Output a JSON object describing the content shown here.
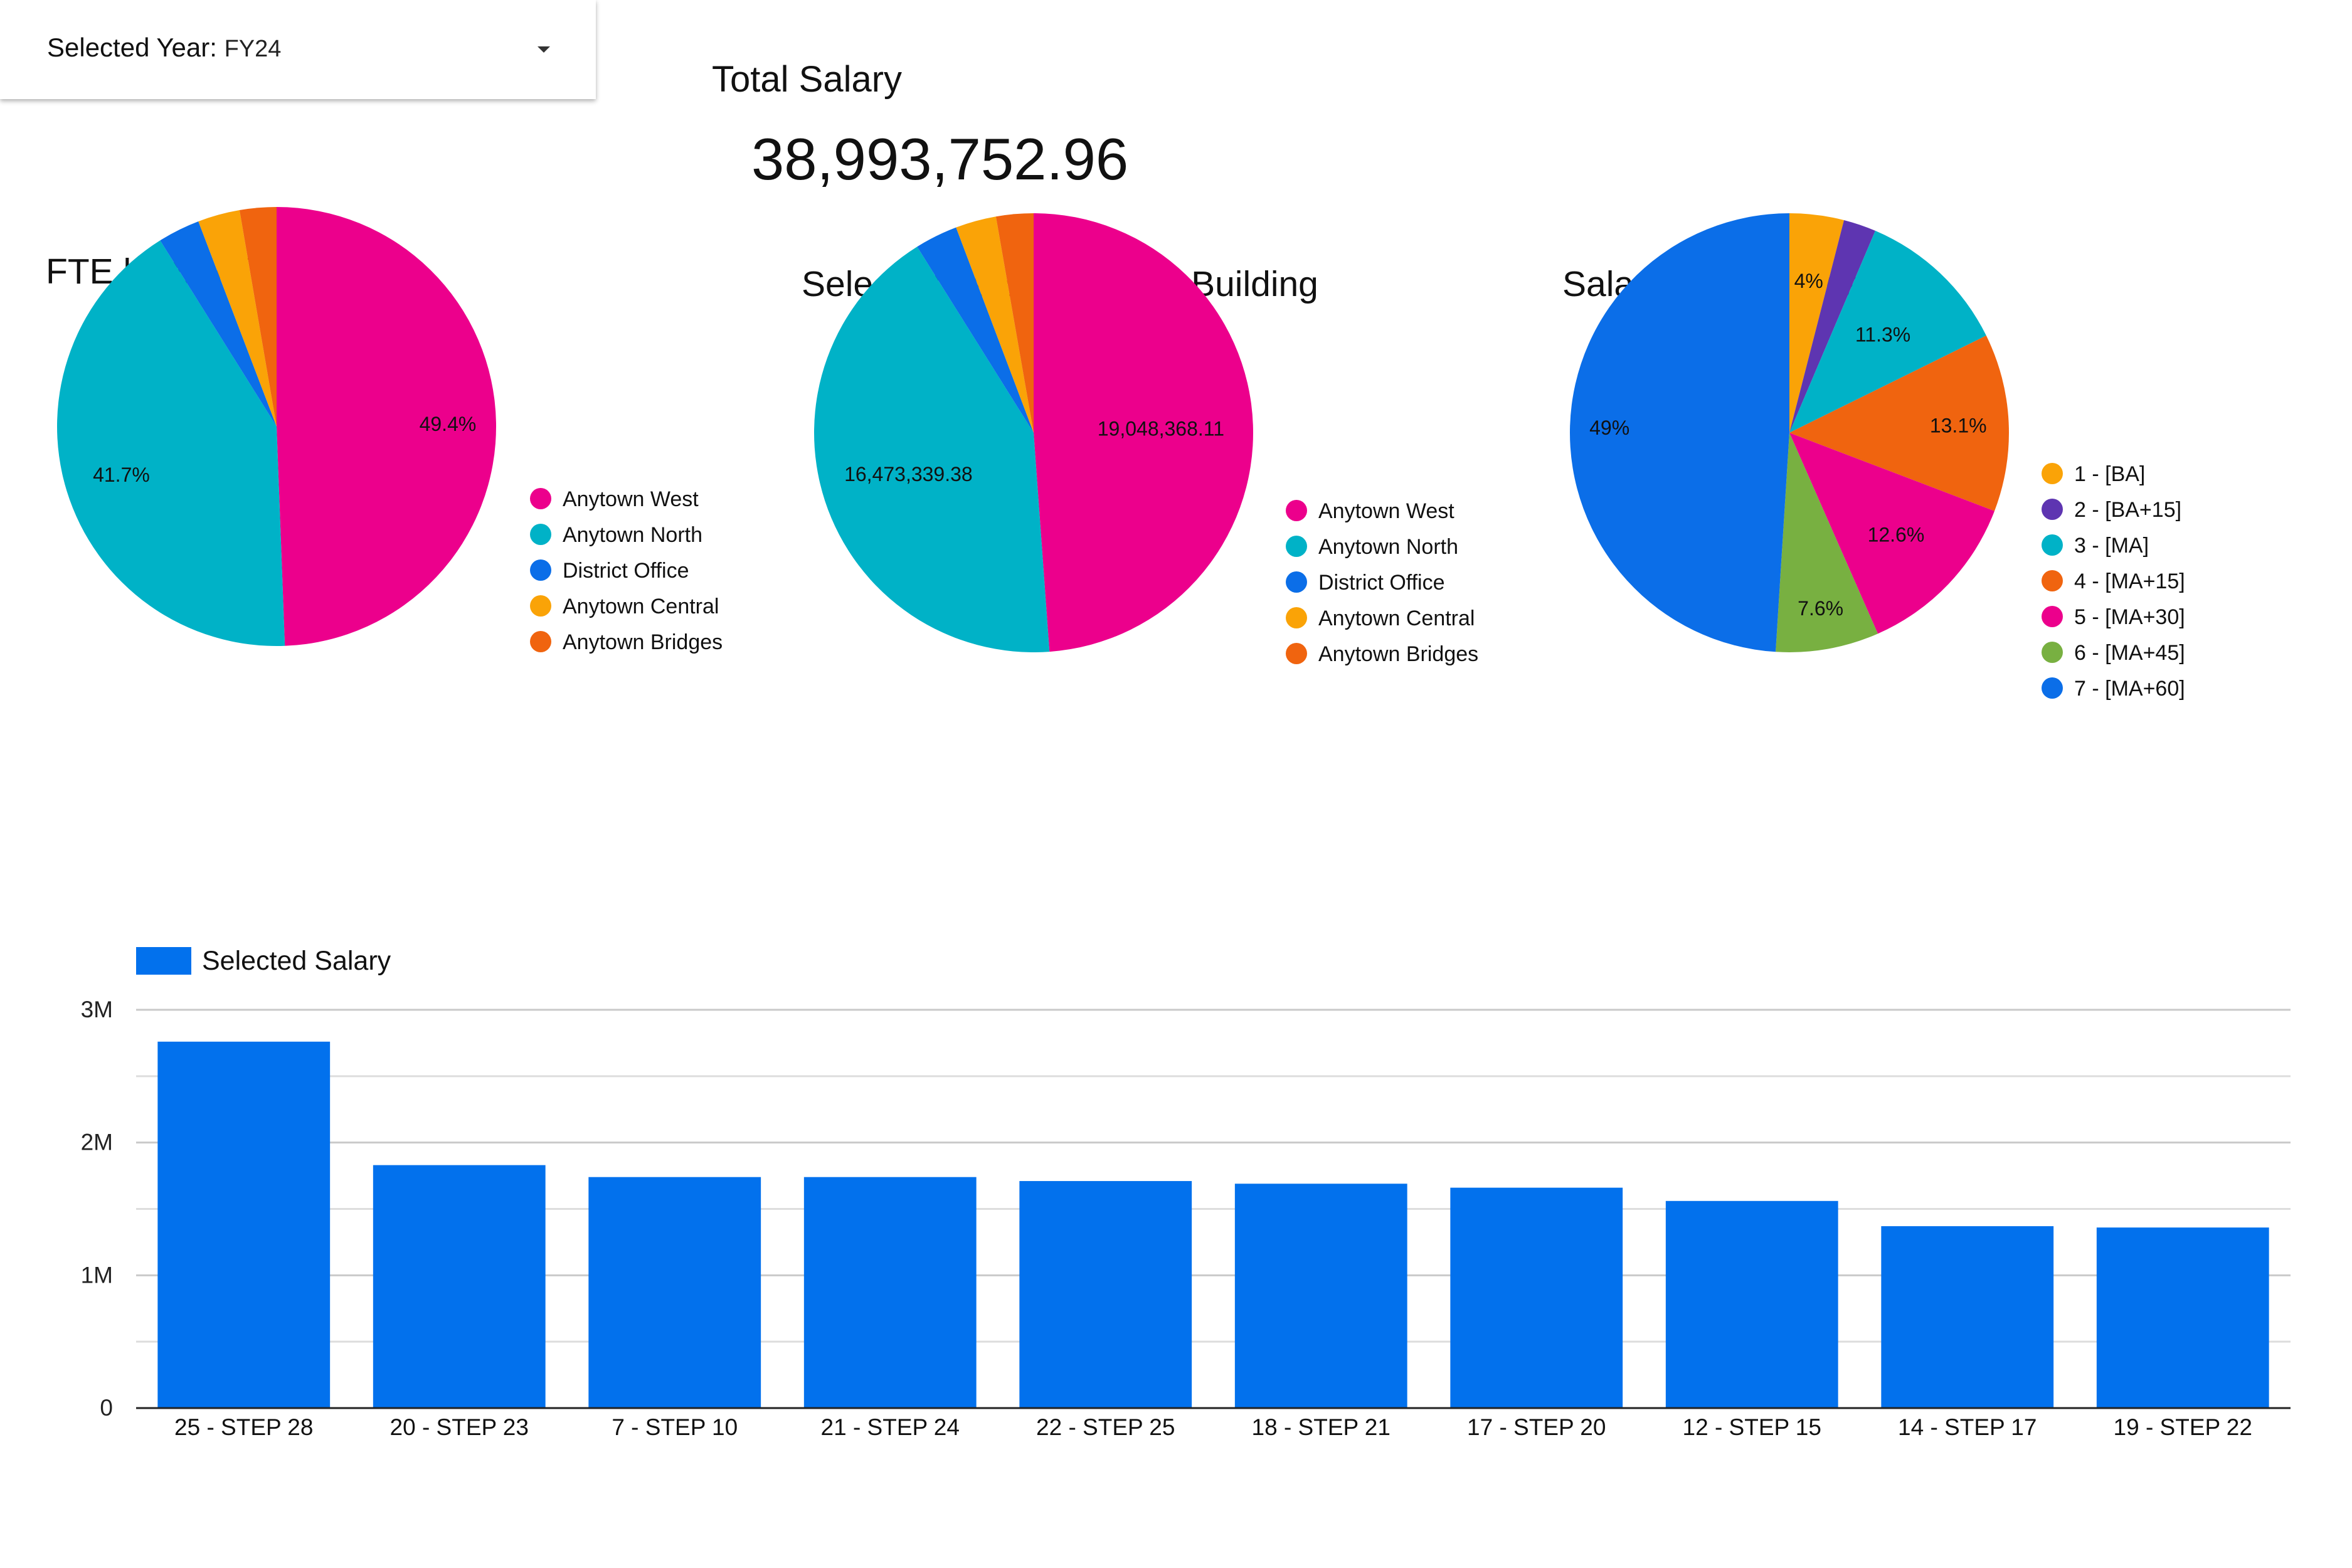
{
  "filter": {
    "label": "Selected Year",
    "value": "FY24"
  },
  "kpi": {
    "title": "Total Salary",
    "value": "38,993,752.96"
  },
  "chart_data": [
    {
      "type": "pie",
      "title": "FTE by Building",
      "labels": [
        "Anytown West",
        "Anytown North",
        "District Office",
        "Anytown Central",
        "Anytown Bridges"
      ],
      "values": [
        49.4,
        41.7,
        3.1,
        3.1,
        2.7
      ],
      "data_labels": [
        "49.4%",
        "41.7%",
        "",
        "",
        ""
      ],
      "colors": [
        "#ec008c",
        "#00b2c7",
        "#0b6ee8",
        "#faa307",
        "#f0640f"
      ],
      "legend": "right"
    },
    {
      "type": "pie",
      "title": "Selected Year Salary by Building",
      "labels": [
        "Anytown West",
        "Anytown North",
        "District Office",
        "Anytown Central",
        "Anytown Bridges"
      ],
      "values": [
        19048368.11,
        16473339.38,
        1230000,
        1170000,
        1072045.47
      ],
      "data_labels": [
        "19,048,368.11",
        "16,473,339.38",
        "",
        "",
        ""
      ],
      "colors": [
        "#ec008c",
        "#00b2c7",
        "#0b6ee8",
        "#faa307",
        "#f0640f"
      ],
      "legend": "right"
    },
    {
      "type": "pie",
      "title": "Salary by Columns",
      "labels": [
        "1 - [BA]",
        "2 - [BA+15]",
        "3 - [MA]",
        "4 - [MA+15]",
        "5 - [MA+30]",
        "6 - [MA+45]",
        "7 - [MA+60]"
      ],
      "values": [
        4.0,
        2.4,
        11.3,
        13.1,
        12.6,
        7.6,
        49.0
      ],
      "data_labels": [
        "4%",
        "",
        "11.3%",
        "13.1%",
        "12.6%",
        "7.6%",
        "49%"
      ],
      "colors": [
        "#faa307",
        "#5e35b1",
        "#00b2c7",
        "#f0640f",
        "#ec008c",
        "#78b041",
        "#0b6ee8"
      ],
      "legend": "right"
    },
    {
      "type": "bar",
      "series": [
        {
          "name": "Selected Salary",
          "color": "#0271ed",
          "values": [
            2760000,
            1830000,
            1740000,
            1740000,
            1710000,
            1690000,
            1660000,
            1560000,
            1370000,
            1360000
          ]
        }
      ],
      "categories": [
        "25 - STEP 28",
        "20 - STEP 23",
        "7 - STEP 10",
        "21 - STEP 24",
        "22 - STEP 25",
        "18 - STEP 21",
        "17 - STEP 20",
        "12 - STEP 15",
        "14 - STEP 17",
        "19 - STEP 22"
      ],
      "y_ticks": [
        0,
        1000000,
        2000000,
        3000000
      ],
      "y_tick_labels": [
        "0",
        "1M",
        "2M",
        "3M"
      ],
      "ylim": [
        0,
        3000000
      ],
      "grid": true,
      "legend": "top-left"
    }
  ]
}
